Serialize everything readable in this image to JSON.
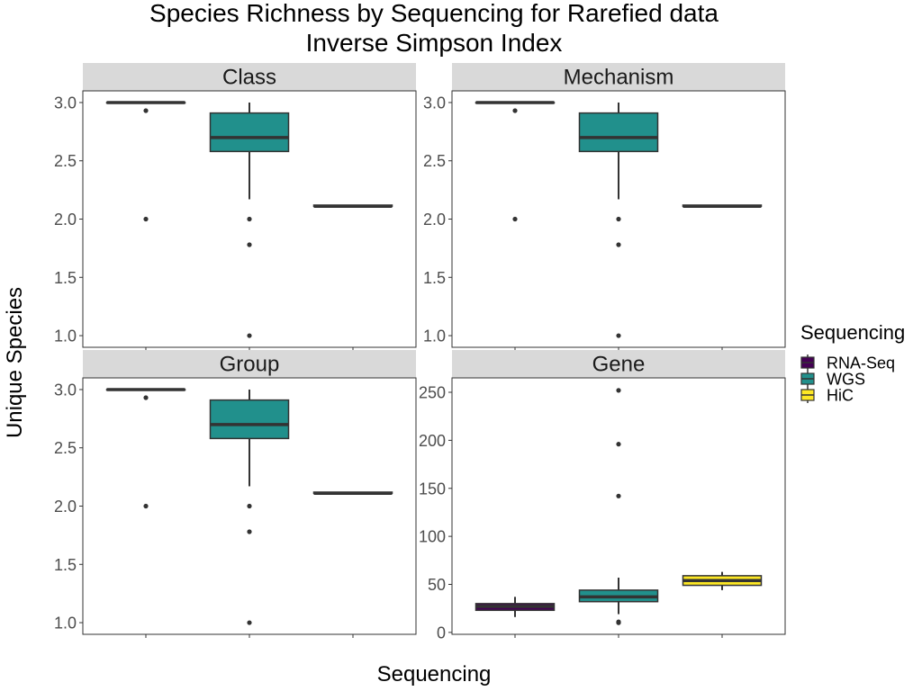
{
  "chart_data": {
    "type": "boxplot",
    "title": "Species Richness by Sequencing for Rarefied data",
    "subtitle": "Inverse Simpson Index",
    "xlabel": "Sequencing",
    "ylabel": "Unique Species",
    "legend": {
      "title": "Sequencing",
      "position": "right",
      "entries": [
        {
          "name": "RNA-Seq",
          "color": "#440154"
        },
        {
          "name": "WGS",
          "color": "#21908C"
        },
        {
          "name": "HiC",
          "color": "#FDE725"
        }
      ]
    },
    "grid": false,
    "x_ticks_labeled": false,
    "facets": [
      {
        "name": "Class",
        "ylim": [
          0.9,
          3.1
        ],
        "yticks": [
          1.0,
          1.5,
          2.0,
          2.5,
          3.0
        ],
        "ytick_labels": [
          "1.0",
          "1.5",
          "2.0",
          "2.5",
          "3.0"
        ],
        "boxes": [
          {
            "group": "RNA-Seq",
            "q1": 3.0,
            "median": 3.0,
            "q3": 3.0,
            "whisker_low": 3.0,
            "whisker_high": 3.0,
            "outliers": [
              2.93,
              2.0
            ]
          },
          {
            "group": "WGS",
            "q1": 2.58,
            "median": 2.7,
            "q3": 2.91,
            "whisker_low": 2.17,
            "whisker_high": 3.0,
            "outliers": [
              2.0,
              1.78,
              1.0
            ]
          },
          {
            "group": "HiC",
            "q1": 2.11,
            "median": 2.11,
            "q3": 2.12,
            "whisker_low": 2.11,
            "whisker_high": 2.12,
            "outliers": []
          }
        ]
      },
      {
        "name": "Mechanism",
        "ylim": [
          0.9,
          3.1
        ],
        "yticks": [
          1.0,
          1.5,
          2.0,
          2.5,
          3.0
        ],
        "ytick_labels": [
          "1.0",
          "1.5",
          "2.0",
          "2.5",
          "3.0"
        ],
        "boxes": [
          {
            "group": "RNA-Seq",
            "q1": 3.0,
            "median": 3.0,
            "q3": 3.0,
            "whisker_low": 3.0,
            "whisker_high": 3.0,
            "outliers": [
              2.93,
              2.0
            ]
          },
          {
            "group": "WGS",
            "q1": 2.58,
            "median": 2.7,
            "q3": 2.91,
            "whisker_low": 2.17,
            "whisker_high": 3.0,
            "outliers": [
              2.0,
              1.78,
              1.0
            ]
          },
          {
            "group": "HiC",
            "q1": 2.11,
            "median": 2.11,
            "q3": 2.12,
            "whisker_low": 2.11,
            "whisker_high": 2.12,
            "outliers": []
          }
        ]
      },
      {
        "name": "Group",
        "ylim": [
          0.9,
          3.1
        ],
        "yticks": [
          1.0,
          1.5,
          2.0,
          2.5,
          3.0
        ],
        "ytick_labels": [
          "1.0",
          "1.5",
          "2.0",
          "2.5",
          "3.0"
        ],
        "boxes": [
          {
            "group": "RNA-Seq",
            "q1": 3.0,
            "median": 3.0,
            "q3": 3.0,
            "whisker_low": 3.0,
            "whisker_high": 3.0,
            "outliers": [
              2.93,
              2.0
            ]
          },
          {
            "group": "WGS",
            "q1": 2.58,
            "median": 2.7,
            "q3": 2.91,
            "whisker_low": 2.17,
            "whisker_high": 3.0,
            "outliers": [
              2.0,
              1.78,
              1.0
            ]
          },
          {
            "group": "HiC",
            "q1": 2.11,
            "median": 2.11,
            "q3": 2.12,
            "whisker_low": 2.11,
            "whisker_high": 2.12,
            "outliers": []
          }
        ]
      },
      {
        "name": "Gene",
        "ylim": [
          -2,
          265
        ],
        "yticks": [
          0,
          50,
          100,
          150,
          200,
          250
        ],
        "ytick_labels": [
          "0",
          "50",
          "100",
          "150",
          "200",
          "250"
        ],
        "boxes": [
          {
            "group": "RNA-Seq",
            "q1": 23,
            "median": 27,
            "q3": 30,
            "whisker_low": 16,
            "whisker_high": 37,
            "outliers": []
          },
          {
            "group": "WGS",
            "q1": 32,
            "median": 37,
            "q3": 44,
            "whisker_low": 19,
            "whisker_high": 57,
            "outliers": [
              252,
              196,
              142,
              11,
              10
            ]
          },
          {
            "group": "HiC",
            "q1": 49,
            "median": 54,
            "q3": 59,
            "whisker_low": 44,
            "whisker_high": 63,
            "outliers": []
          }
        ]
      }
    ]
  }
}
